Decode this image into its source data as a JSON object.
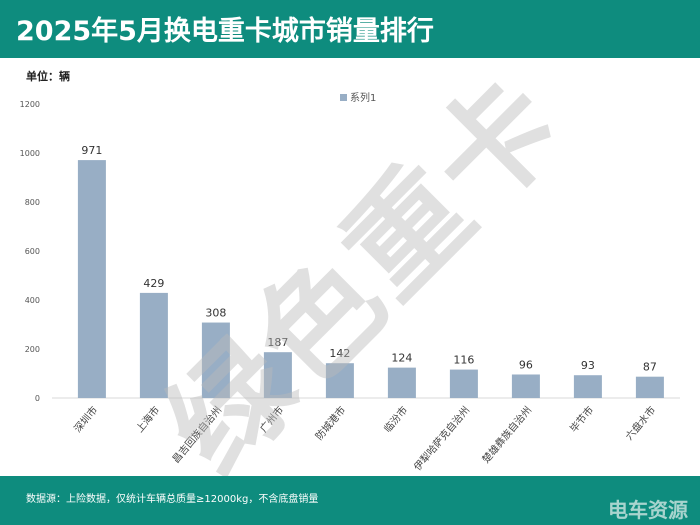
{
  "header": {
    "title": "2025年5月换电重卡城市销量排行"
  },
  "unit_label": "单位：辆",
  "footer": {
    "source": "数据源：上险数据，仅统计车辆总质量≥12000kg，不含底盘销量",
    "logo": "电车资源"
  },
  "watermark": "绿色重卡",
  "chart_data": {
    "type": "bar",
    "title": "2025年5月换电重卡城市销量排行",
    "categories": [
      "深圳市",
      "上海市",
      "昌吉回族自治州",
      "广州市",
      "防城港市",
      "临汾市",
      "伊犁哈萨克自治州",
      "楚雄彝族自治州",
      "毕节市",
      "六盘水市"
    ],
    "series": [
      {
        "name": "系列1",
        "values": [
          971,
          429,
          308,
          187,
          142,
          124,
          116,
          96,
          93,
          87
        ],
        "color": "#98aec5"
      }
    ],
    "ylim": [
      0,
      1200
    ],
    "yticks": [
      0,
      200,
      400,
      600,
      800,
      1000,
      1200
    ],
    "legend": "top-center",
    "grid": false,
    "xlabel": "",
    "ylabel": "单位：辆"
  }
}
